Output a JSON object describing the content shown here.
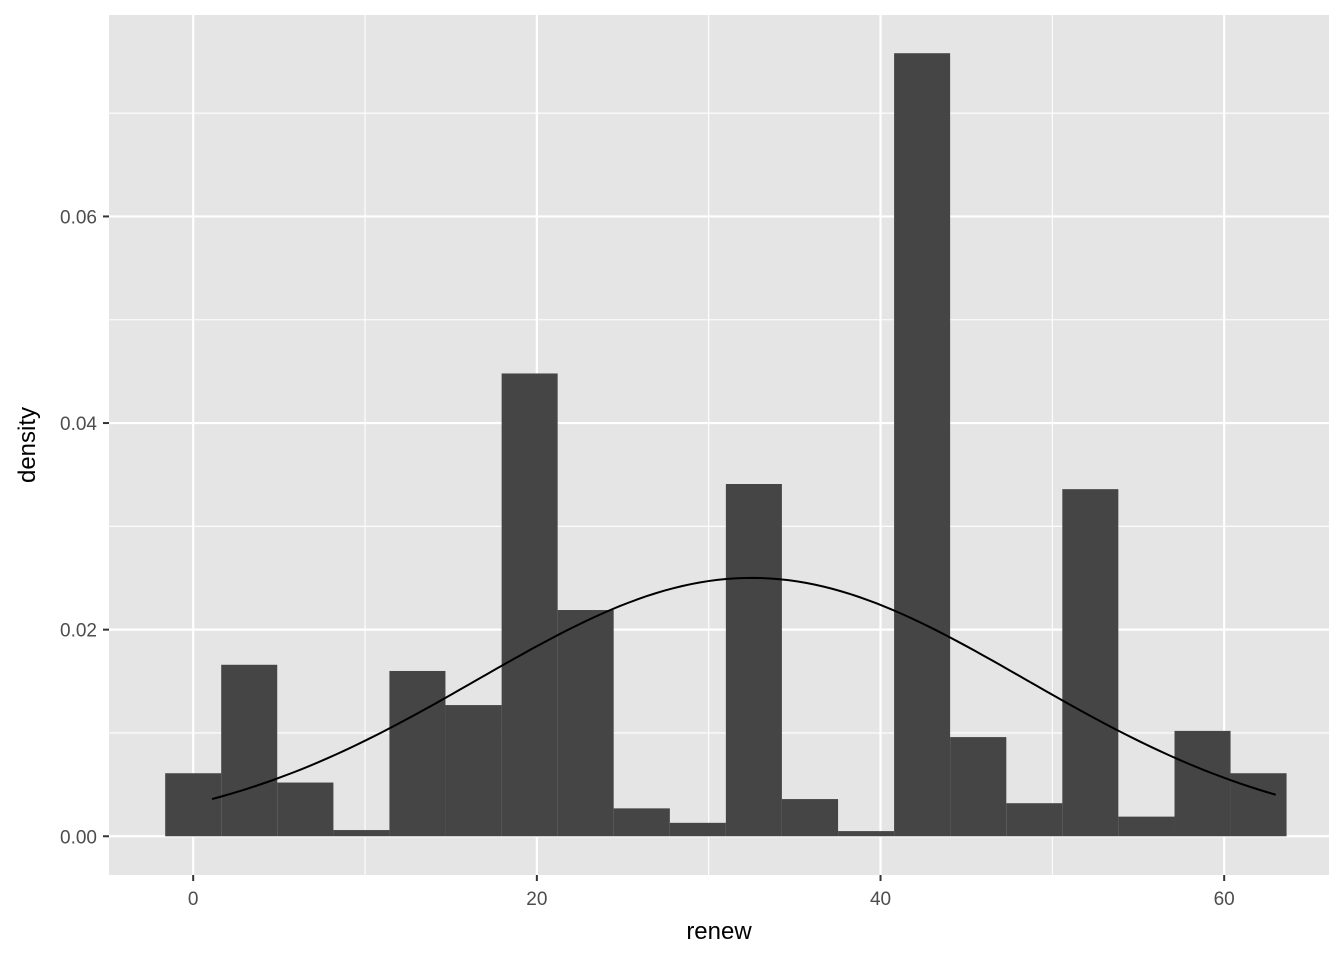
{
  "chart_data": {
    "type": "bar",
    "subtype": "histogram with normal density curve",
    "xlabel": "renew",
    "ylabel": "density",
    "xlim": [
      -4.9,
      66.1
    ],
    "ylim": [
      -0.00375,
      0.0795
    ],
    "x_ticks": [
      0,
      20,
      40,
      60
    ],
    "x_tick_labels": [
      "0",
      "20",
      "40",
      "60"
    ],
    "y_ticks": [
      0.0,
      0.02,
      0.04,
      0.06
    ],
    "y_tick_labels": [
      "0.00",
      "0.02",
      "0.04",
      "0.06"
    ],
    "grid": true,
    "legend": "none",
    "bin_width": 3.263,
    "bins": [
      {
        "x0": -1.63,
        "x1": 1.63,
        "density": 0.0061
      },
      {
        "x0": 1.63,
        "x1": 4.89,
        "density": 0.0166
      },
      {
        "x0": 4.89,
        "x1": 8.16,
        "density": 0.0052
      },
      {
        "x0": 8.16,
        "x1": 11.42,
        "density": 0.0006
      },
      {
        "x0": 11.42,
        "x1": 14.68,
        "density": 0.016
      },
      {
        "x0": 14.68,
        "x1": 17.95,
        "density": 0.0127
      },
      {
        "x0": 17.95,
        "x1": 21.21,
        "density": 0.0448
      },
      {
        "x0": 21.21,
        "x1": 24.47,
        "density": 0.0219
      },
      {
        "x0": 24.47,
        "x1": 27.74,
        "density": 0.0027
      },
      {
        "x0": 27.74,
        "x1": 31.0,
        "density": 0.0013
      },
      {
        "x0": 31.0,
        "x1": 34.26,
        "density": 0.0341
      },
      {
        "x0": 34.26,
        "x1": 37.53,
        "density": 0.0036
      },
      {
        "x0": 37.53,
        "x1": 40.79,
        "density": 0.0005
      },
      {
        "x0": 40.79,
        "x1": 44.05,
        "density": 0.0758
      },
      {
        "x0": 44.05,
        "x1": 47.32,
        "density": 0.0096
      },
      {
        "x0": 47.32,
        "x1": 50.58,
        "density": 0.0032
      },
      {
        "x0": 50.58,
        "x1": 53.84,
        "density": 0.0336
      },
      {
        "x0": 53.84,
        "x1": 57.11,
        "density": 0.0019
      },
      {
        "x0": 57.11,
        "x1": 60.37,
        "density": 0.0102
      },
      {
        "x0": 60.37,
        "x1": 63.63,
        "density": 0.0061
      }
    ],
    "curve": {
      "name": "normal density",
      "mean": 32.5,
      "sd": 15.95,
      "x_range": [
        1.1,
        63.0
      ]
    },
    "colors": {
      "panel_background": "#e5e5e5",
      "grid_major": "#ffffff",
      "bar_fill": "#454545",
      "curve": "#000000",
      "tick_label": "#4d4d4d",
      "tick_mark": "#333333"
    }
  }
}
